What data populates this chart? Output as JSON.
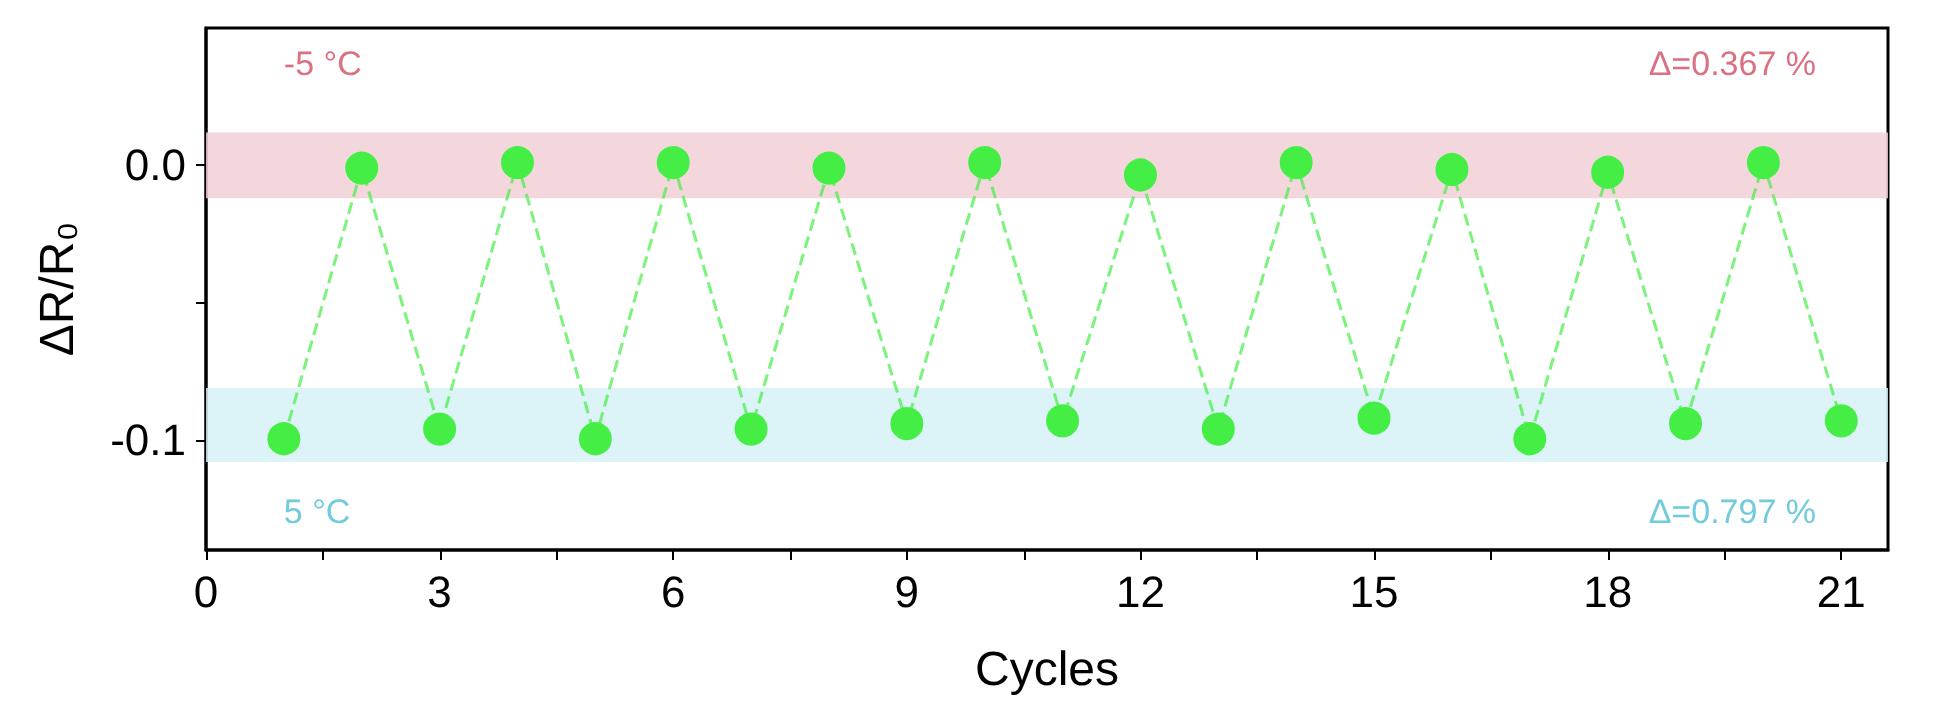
{
  "chart_data": {
    "type": "line",
    "xlabel": "Cycles",
    "ylabel": "ΔR/R₀",
    "x": [
      1,
      2,
      3,
      4,
      5,
      6,
      7,
      8,
      9,
      10,
      11,
      12,
      13,
      14,
      15,
      16,
      17,
      18,
      19,
      20,
      21
    ],
    "series": [
      {
        "color": "#44ee44",
        "values": [
          -0.0995,
          -0.001,
          -0.096,
          0.001,
          -0.0995,
          0.001,
          -0.096,
          -0.001,
          -0.094,
          0.001,
          -0.093,
          -0.0035,
          -0.096,
          0.001,
          -0.092,
          -0.0015,
          -0.0995,
          -0.0025,
          -0.094,
          0.001,
          -0.093
        ]
      }
    ],
    "xlim": [
      0,
      21.6
    ],
    "ylim": [
      -0.14,
      0.05
    ],
    "xticks": [
      0,
      {
        "value": 1.5,
        "label": null
      },
      3,
      {
        "value": 4.5,
        "label": null
      },
      6,
      {
        "value": 7.5,
        "label": null
      },
      9,
      {
        "value": 10.5,
        "label": null
      },
      12,
      {
        "value": 13.5,
        "label": null
      },
      15,
      {
        "value": 16.5,
        "label": null
      },
      18,
      {
        "value": 19.5,
        "label": null
      },
      21
    ],
    "yticks": [
      {
        "value": -0.1,
        "label": "-0.1"
      },
      {
        "value": -0.05,
        "label": null
      },
      {
        "value": 0,
        "label": "0.0"
      }
    ],
    "bands": [
      {
        "axis": "y",
        "from": -0.012,
        "to": 0.012,
        "label": "-5 °C",
        "color": "#f2d0d6"
      },
      {
        "axis": "y",
        "from": -0.108,
        "to": -0.081,
        "label": "5 °C",
        "color": "#d6f1f6"
      }
    ],
    "annotations": [
      "Δ=0.367 %",
      "Δ=0.797 %"
    ],
    "marker": "circle",
    "line_style": "dashed",
    "grid": false
  }
}
